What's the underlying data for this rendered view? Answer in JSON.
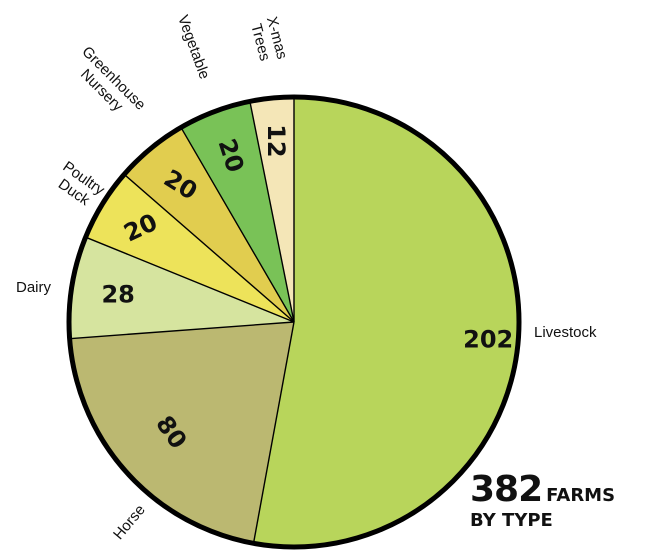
{
  "chart_data": {
    "type": "pie",
    "title_total": "382",
    "title_suffix": "FARMS",
    "title_line2": "BY TYPE",
    "slices": [
      {
        "label": "Livestock",
        "label_lines": [
          "Livestock"
        ],
        "value": 202,
        "color": "#b8d55b"
      },
      {
        "label": "Horse",
        "label_lines": [
          "Horse"
        ],
        "value": 80,
        "color": "#bbb871"
      },
      {
        "label": "Dairy",
        "label_lines": [
          "Dairy"
        ],
        "value": 28,
        "color": "#d6e49f"
      },
      {
        "label": "Poultry Duck",
        "label_lines": [
          "Poultry",
          "Duck"
        ],
        "value": 20,
        "color": "#ede35a"
      },
      {
        "label": "Greenhouse Nursery",
        "label_lines": [
          "Greenhouse",
          "Nursery"
        ],
        "value": 20,
        "color": "#e1cd4f"
      },
      {
        "label": "Vegetable",
        "label_lines": [
          "Vegetable"
        ],
        "value": 20,
        "color": "#79c257"
      },
      {
        "label": "X-mas Trees",
        "label_lines": [
          "X-mas",
          "Trees"
        ],
        "value": 12,
        "color": "#f4e6b7"
      }
    ]
  }
}
